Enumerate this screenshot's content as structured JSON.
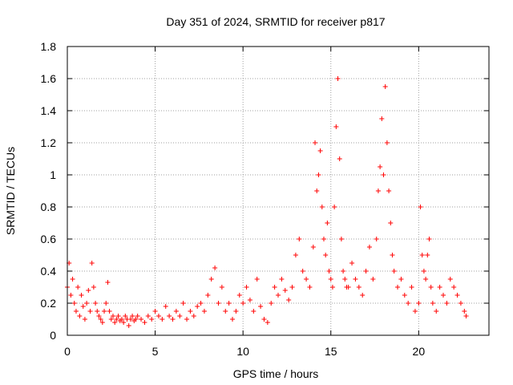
{
  "chart_data": {
    "type": "scatter",
    "title": "Day 351 of 2024, SRMTID for receiver p817",
    "xlabel": "GPS time / hours",
    "ylabel": "SRMTID / TECUs",
    "xlim": [
      0,
      24
    ],
    "ylim": [
      0,
      1.8
    ],
    "xticks": [
      0,
      5,
      10,
      15,
      20
    ],
    "xtick_labels": [
      "0",
      "5",
      "10",
      "15",
      "20"
    ],
    "yticks": [
      0,
      0.2,
      0.4,
      0.6,
      0.8,
      1,
      1.2,
      1.4,
      1.6,
      1.8
    ],
    "ytick_labels": [
      "0",
      "0.2",
      "0.4",
      "0.6",
      "0.8",
      "1",
      "1.2",
      "1.4",
      "1.6",
      "1.8"
    ],
    "grid": true,
    "marker": "+",
    "color": "#ff0000",
    "series": [
      {
        "name": "SRMTID",
        "x": [
          0.0,
          0.1,
          0.2,
          0.3,
          0.4,
          0.5,
          0.6,
          0.7,
          0.8,
          0.9,
          1.0,
          1.1,
          1.2,
          1.3,
          1.4,
          1.5,
          1.6,
          1.7,
          1.8,
          1.9,
          2.0,
          2.1,
          2.2,
          2.3,
          2.4,
          2.5,
          2.6,
          2.7,
          2.8,
          2.9,
          3.0,
          3.1,
          3.2,
          3.3,
          3.4,
          3.5,
          3.6,
          3.7,
          3.8,
          3.9,
          4.0,
          4.2,
          4.4,
          4.6,
          4.8,
          5.0,
          5.2,
          5.4,
          5.6,
          5.8,
          6.0,
          6.2,
          6.4,
          6.6,
          6.8,
          7.0,
          7.2,
          7.4,
          7.6,
          7.8,
          8.0,
          8.2,
          8.4,
          8.6,
          8.8,
          9.0,
          9.2,
          9.4,
          9.6,
          9.8,
          10.0,
          10.2,
          10.4,
          10.6,
          10.8,
          11.0,
          11.2,
          11.4,
          11.6,
          11.8,
          12.0,
          12.2,
          12.4,
          12.6,
          12.8,
          13.0,
          13.2,
          13.4,
          13.6,
          13.8,
          14.0,
          14.1,
          14.2,
          14.3,
          14.4,
          14.5,
          14.6,
          14.7,
          14.8,
          14.9,
          15.0,
          15.1,
          15.2,
          15.3,
          15.4,
          15.5,
          15.6,
          15.7,
          15.8,
          15.9,
          16.0,
          16.2,
          16.4,
          16.6,
          16.8,
          17.0,
          17.2,
          17.4,
          17.6,
          17.7,
          17.8,
          17.9,
          18.0,
          18.1,
          18.2,
          18.3,
          18.4,
          18.5,
          18.6,
          18.8,
          19.0,
          19.2,
          19.4,
          19.6,
          19.8,
          20.0,
          20.1,
          20.2,
          20.3,
          20.4,
          20.5,
          20.6,
          20.7,
          20.8,
          21.0,
          21.2,
          21.4,
          21.6,
          21.8,
          22.0,
          22.2,
          22.4,
          22.6,
          22.7
        ],
        "y": [
          0.3,
          0.45,
          0.25,
          0.35,
          0.2,
          0.15,
          0.3,
          0.12,
          0.25,
          0.18,
          0.1,
          0.2,
          0.28,
          0.15,
          0.45,
          0.3,
          0.2,
          0.15,
          0.12,
          0.1,
          0.08,
          0.15,
          0.2,
          0.33,
          0.15,
          0.1,
          0.12,
          0.08,
          0.1,
          0.12,
          0.09,
          0.1,
          0.08,
          0.12,
          0.1,
          0.06,
          0.1,
          0.12,
          0.09,
          0.1,
          0.12,
          0.1,
          0.08,
          0.12,
          0.1,
          0.15,
          0.12,
          0.1,
          0.18,
          0.12,
          0.1,
          0.15,
          0.12,
          0.2,
          0.1,
          0.15,
          0.12,
          0.18,
          0.2,
          0.15,
          0.25,
          0.35,
          0.42,
          0.2,
          0.3,
          0.15,
          0.2,
          0.1,
          0.15,
          0.25,
          0.2,
          0.3,
          0.22,
          0.15,
          0.35,
          0.18,
          0.1,
          0.08,
          0.2,
          0.3,
          0.25,
          0.35,
          0.28,
          0.22,
          0.3,
          0.5,
          0.6,
          0.4,
          0.35,
          0.3,
          0.55,
          1.2,
          0.9,
          1.0,
          1.15,
          0.8,
          0.6,
          0.5,
          0.7,
          0.4,
          0.35,
          0.3,
          0.8,
          1.3,
          1.6,
          1.1,
          0.6,
          0.4,
          0.35,
          0.3,
          0.3,
          0.45,
          0.35,
          0.3,
          0.25,
          0.4,
          0.55,
          0.35,
          0.6,
          0.9,
          1.05,
          1.35,
          1.0,
          1.55,
          1.2,
          0.9,
          0.7,
          0.5,
          0.4,
          0.3,
          0.35,
          0.25,
          0.2,
          0.3,
          0.15,
          0.2,
          0.8,
          0.5,
          0.4,
          0.35,
          0.5,
          0.6,
          0.3,
          0.2,
          0.15,
          0.3,
          0.25,
          0.2,
          0.35,
          0.3,
          0.25,
          0.2,
          0.15,
          0.12
        ]
      }
    ]
  }
}
